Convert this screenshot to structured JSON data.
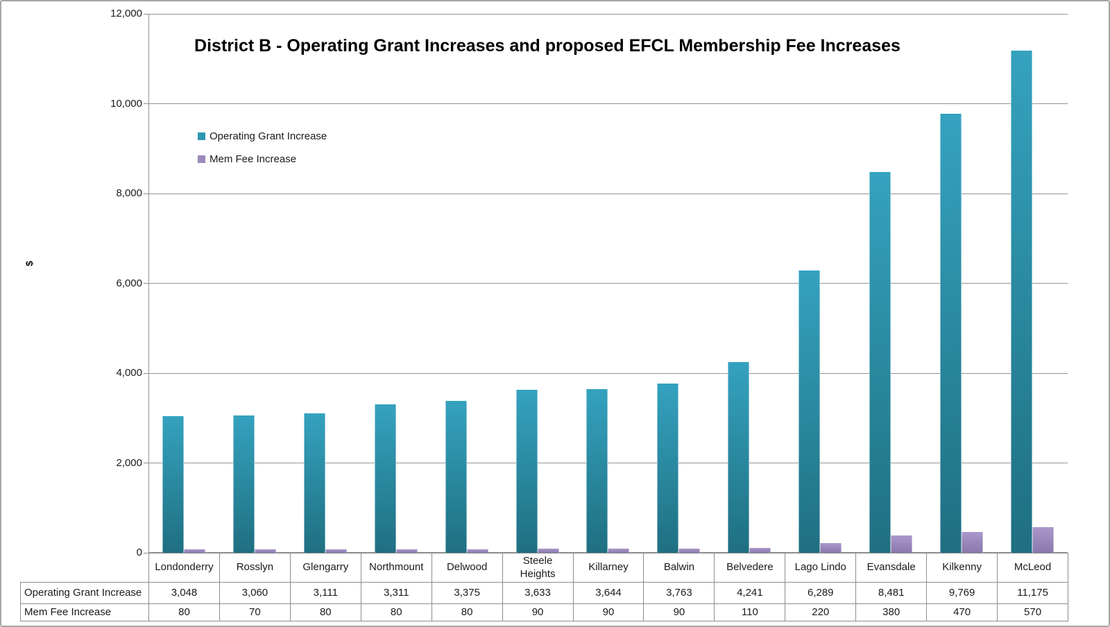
{
  "chart_data": {
    "type": "bar",
    "title": "District B - Operating Grant Increases and proposed EFCL Membership Fee Increases",
    "xlabel": "",
    "ylabel": "$",
    "ylim": [
      0,
      12000
    ],
    "ytick_interval": 2000,
    "ytick_labels": [
      "0",
      "2,000",
      "4,000",
      "6,000",
      "8,000",
      "10,000",
      "12,000"
    ],
    "grid": true,
    "legend_position": "inside-top-left",
    "categories": [
      "Londonderry",
      "Rosslyn",
      "Glengarry",
      "Northmount",
      "Delwood",
      "Steele Heights",
      "Killarney",
      "Balwin",
      "Belvedere",
      "Lago Lindo",
      "Evansdale",
      "Kilkenny",
      "McLeod"
    ],
    "series": [
      {
        "name": "Operating Grant Increase",
        "legend_color": "#2e96b3",
        "color_top": "#35a2bf",
        "color_bottom": "#1f6f81",
        "values": [
          3048,
          3060,
          3111,
          3311,
          3375,
          3633,
          3644,
          3763,
          4241,
          6289,
          8481,
          9769,
          11175
        ],
        "display_values": [
          "3,048",
          "3,060",
          "3,111",
          "3,311",
          "3,375",
          "3,633",
          "3,644",
          "3,763",
          "4,241",
          "6,289",
          "8,481",
          "9,769",
          "11,175"
        ]
      },
      {
        "name": "Mem Fee Increase",
        "legend_color": "#9c8abb",
        "color_top": "#ab97cb",
        "color_bottom": "#8a77ab",
        "values": [
          80,
          70,
          80,
          80,
          80,
          90,
          90,
          90,
          110,
          220,
          380,
          470,
          570
        ],
        "display_values": [
          "80",
          "70",
          "80",
          "80",
          "80",
          "90",
          "90",
          "90",
          "110",
          "220",
          "380",
          "470",
          "570"
        ]
      }
    ]
  },
  "colors": {
    "grid": "#949494",
    "axis": "#8c8c8c",
    "table_border": "#8c8c8c",
    "text": "#1a1a1a",
    "background": "#ffffff",
    "frame_border": "#a6a6a6"
  }
}
